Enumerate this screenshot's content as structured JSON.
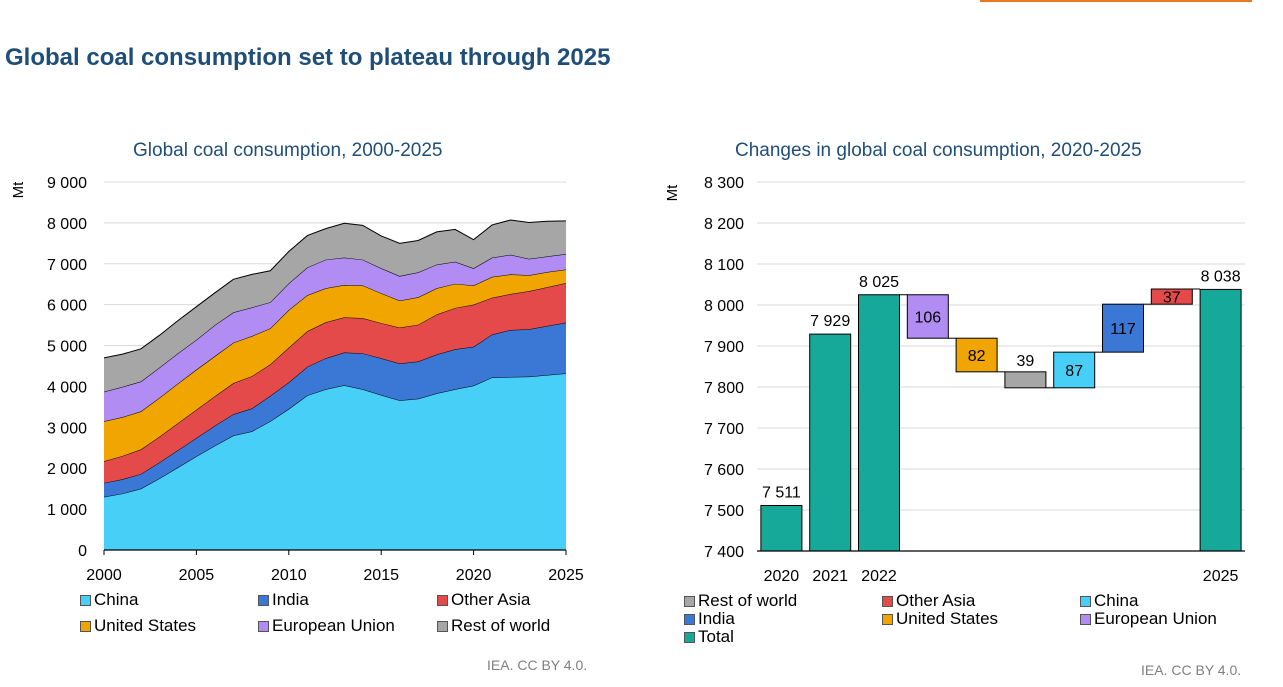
{
  "header": {
    "title": "Global coal consumption set to plateau through 2025",
    "accent_color": "#E87722"
  },
  "colors": {
    "China": "#48CFF7",
    "India": "#3B77D4",
    "Other Asia": "#E54A4A",
    "United States": "#F0A500",
    "European Union": "#B18CF2",
    "Rest of world": "#A6A6A6",
    "Total": "#16A99A"
  },
  "chart_data": [
    {
      "type": "area",
      "title": "Global coal consumption, 2000-2025",
      "ylabel": "Mt",
      "xlabel": "",
      "stacked": true,
      "xlim": [
        2000,
        2025
      ],
      "ylim": [
        0,
        9000
      ],
      "yticks": [
        0,
        1000,
        2000,
        3000,
        4000,
        5000,
        6000,
        7000,
        8000,
        9000
      ],
      "ytick_labels": [
        "0",
        "1 000",
        "2 000",
        "3 000",
        "4 000",
        "5 000",
        "6 000",
        "7 000",
        "8 000",
        "9 000"
      ],
      "xticks": [
        2000,
        2005,
        2010,
        2015,
        2020,
        2025
      ],
      "xtick_labels": [
        "2000",
        "2005",
        "2010",
        "2015",
        "2020",
        "2025"
      ],
      "grid": true,
      "legend_position": "bottom",
      "x": [
        2000,
        2001,
        2002,
        2003,
        2004,
        2005,
        2006,
        2007,
        2008,
        2009,
        2010,
        2011,
        2012,
        2013,
        2014,
        2015,
        2016,
        2017,
        2018,
        2019,
        2020,
        2021,
        2022,
        2023,
        2024,
        2025
      ],
      "series": [
        {
          "name": "China",
          "values": [
            1300,
            1380,
            1500,
            1750,
            2020,
            2290,
            2550,
            2800,
            2900,
            3150,
            3450,
            3780,
            3930,
            4030,
            3930,
            3790,
            3660,
            3700,
            3830,
            3930,
            4020,
            4220,
            4230,
            4240,
            4280,
            4320
          ]
        },
        {
          "name": "India",
          "values": [
            340,
            350,
            360,
            390,
            420,
            450,
            490,
            520,
            560,
            620,
            650,
            700,
            760,
            800,
            880,
            900,
            900,
            910,
            950,
            980,
            950,
            1050,
            1150,
            1160,
            1200,
            1240
          ]
        },
        {
          "name": "Other Asia",
          "values": [
            530,
            570,
            600,
            630,
            660,
            690,
            720,
            760,
            790,
            770,
            850,
            870,
            880,
            860,
            860,
            860,
            880,
            900,
            980,
            1010,
            1030,
            900,
            880,
            930,
            950,
            970
          ]
        },
        {
          "name": "United States",
          "values": [
            980,
            950,
            930,
            950,
            970,
            980,
            980,
            990,
            980,
            880,
            920,
            880,
            830,
            790,
            800,
            730,
            660,
            670,
            640,
            590,
            470,
            510,
            480,
            390,
            370,
            330
          ]
        },
        {
          "name": "European Union",
          "values": [
            720,
            740,
            730,
            740,
            740,
            730,
            760,
            740,
            700,
            640,
            650,
            680,
            700,
            670,
            630,
            610,
            600,
            610,
            580,
            540,
            420,
            470,
            480,
            400,
            380,
            380
          ]
        },
        {
          "name": "Rest of world",
          "values": [
            830,
            800,
            800,
            790,
            800,
            810,
            790,
            810,
            810,
            770,
            780,
            780,
            760,
            840,
            840,
            790,
            800,
            780,
            800,
            790,
            700,
            800,
            850,
            890,
            860,
            810
          ]
        }
      ]
    },
    {
      "type": "bar",
      "subtype": "waterfall",
      "title": "Changes in global coal consumption, 2020-2025",
      "ylabel": "Mt",
      "ylim": [
        7400,
        8300
      ],
      "yticks": [
        7400,
        7500,
        7600,
        7700,
        7800,
        7900,
        8000,
        8100,
        8200,
        8300
      ],
      "ytick_labels": [
        "7 400",
        "7 500",
        "7 600",
        "7 700",
        "7 800",
        "7 900",
        "8 000",
        "8 100",
        "8 200",
        "8 300"
      ],
      "grid": true,
      "legend_position": "bottom",
      "bars": [
        {
          "label": "2020",
          "kind": "total",
          "start": 7400,
          "end": 7511,
          "value_label": "7 511",
          "color_key": "Total"
        },
        {
          "label": "2021",
          "kind": "total",
          "start": 7400,
          "end": 7929,
          "value_label": "7 929",
          "color_key": "Total"
        },
        {
          "label": "2022",
          "kind": "total",
          "start": 7400,
          "end": 8025,
          "value_label": "8 025",
          "color_key": "Total"
        },
        {
          "label": "",
          "kind": "change",
          "start": 8025,
          "end": 7919,
          "value_label": "106",
          "color_key": "European Union"
        },
        {
          "label": "",
          "kind": "change",
          "start": 7919,
          "end": 7837,
          "value_label": "82",
          "color_key": "United States"
        },
        {
          "label": "",
          "kind": "change",
          "start": 7837,
          "end": 7798,
          "value_label": "39",
          "color_key": "Rest of world"
        },
        {
          "label": "",
          "kind": "change",
          "start": 7798,
          "end": 7885,
          "value_label": "87",
          "color_key": "China"
        },
        {
          "label": "",
          "kind": "change",
          "start": 7885,
          "end": 8002,
          "value_label": "117",
          "color_key": "India"
        },
        {
          "label": "",
          "kind": "change",
          "start": 8002,
          "end": 8039,
          "value_label": "37",
          "color_key": "Other Asia"
        },
        {
          "label": "2025",
          "kind": "total",
          "start": 7400,
          "end": 8038,
          "value_label": "8 038",
          "color_key": "Total"
        }
      ],
      "legend": [
        "Rest of world",
        "Other Asia",
        "China",
        "India",
        "United States",
        "European Union",
        "Total"
      ]
    }
  ],
  "credits": {
    "left": "IEA. CC BY 4.0.",
    "right": "IEA. CC BY 4.0."
  }
}
